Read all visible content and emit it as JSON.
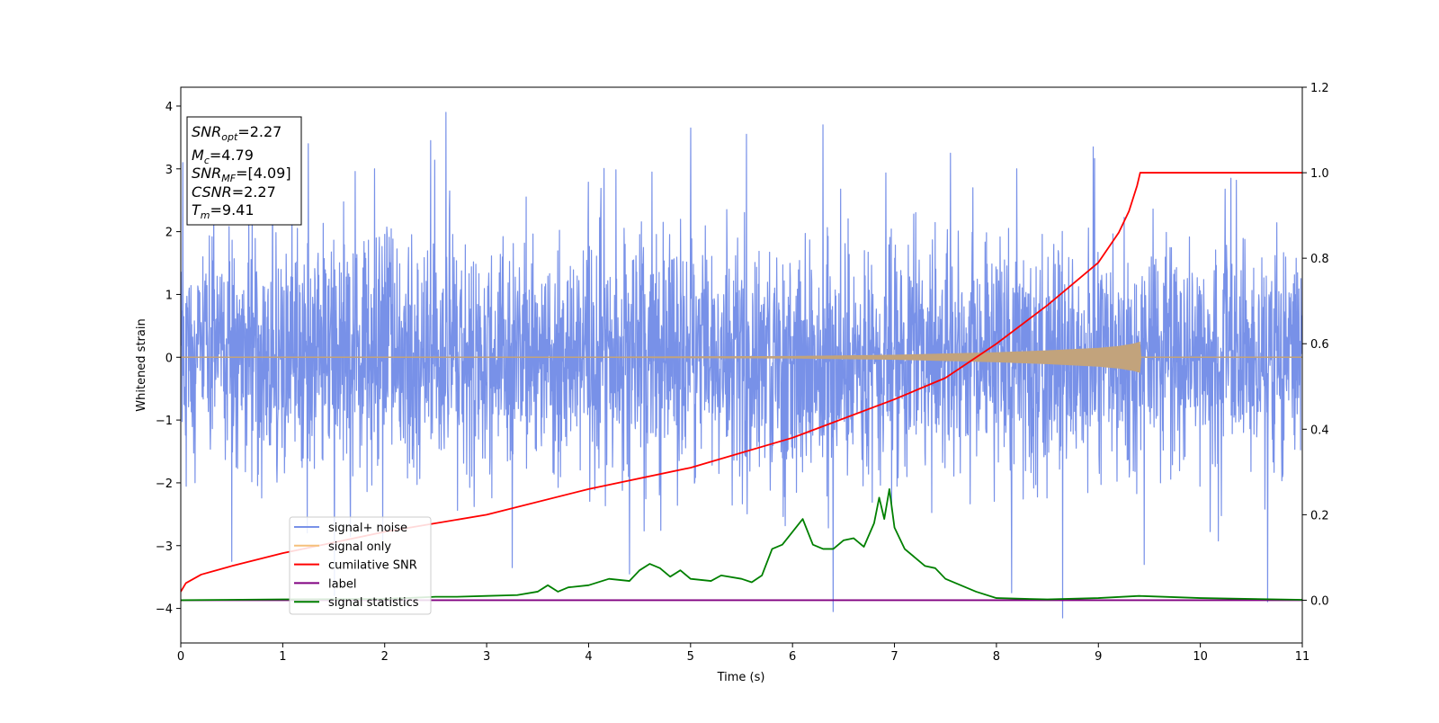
{
  "chart_data": {
    "type": "line",
    "xlabel": "Time (s)",
    "ylabel": "Whitened strain",
    "xlim": [
      0,
      11
    ],
    "ylim": [
      -4.55,
      4.3
    ],
    "y2lim": [
      -0.1,
      1.2
    ],
    "xticks": [
      "0",
      "1",
      "2",
      "3",
      "4",
      "5",
      "6",
      "7",
      "8",
      "9",
      "10",
      "11"
    ],
    "yticks": [
      "−4",
      "−3",
      "−2",
      "−1",
      "0",
      "1",
      "2",
      "3",
      "4"
    ],
    "y2ticks": [
      "0.0",
      "0.2",
      "0.4",
      "0.6",
      "0.8",
      "1.0",
      "1.2"
    ],
    "grid": false,
    "legend_position": "lower-left",
    "annotation_box": {
      "lines": [
        {
          "sym": "SNR",
          "sub": "opt",
          "value": "=2.27"
        },
        {
          "sym": "M",
          "sub": "c",
          "value": "=4.79"
        },
        {
          "sym": "SNR",
          "sub": "MF",
          "value": "=[4.09]"
        },
        {
          "sym": "CSNR",
          "sub": "",
          "value": "=2.27"
        },
        {
          "sym": "T",
          "sub": "m",
          "value": "=9.41"
        }
      ]
    },
    "series": [
      {
        "name": "signal+ noise",
        "color": "#7891e8",
        "axis": "left",
        "kind": "noise",
        "std": 0.95,
        "min_y": -4.15,
        "max_y": 3.9,
        "spikes": [
          [
            0.02,
            3.1
          ],
          [
            0.5,
            -3.25
          ],
          [
            0.9,
            3.3
          ],
          [
            1.25,
            3.4
          ],
          [
            1.9,
            3.0
          ],
          [
            2.45,
            3.45
          ],
          [
            2.6,
            3.9
          ],
          [
            3.25,
            -3.35
          ],
          [
            4.4,
            -3.45
          ],
          [
            5.0,
            3.65
          ],
          [
            5.55,
            3.55
          ],
          [
            6.3,
            3.7
          ],
          [
            6.4,
            -4.05
          ],
          [
            7.55,
            3.25
          ],
          [
            8.15,
            -3.75
          ],
          [
            8.2,
            3.0
          ],
          [
            8.65,
            -4.15
          ],
          [
            8.95,
            3.35
          ],
          [
            9.45,
            -3.3
          ],
          [
            10.3,
            2.85
          ]
        ]
      },
      {
        "name": "signal only",
        "color": "#f5c07a",
        "axis": "left",
        "kind": "chirp",
        "fill_color": "#c2a37c",
        "envelope": [
          [
            0,
            0.004
          ],
          [
            4.0,
            0.01
          ],
          [
            6.0,
            0.02
          ],
          [
            7.0,
            0.04
          ],
          [
            8.0,
            0.08
          ],
          [
            8.5,
            0.11
          ],
          [
            9.0,
            0.15
          ],
          [
            9.2,
            0.18
          ],
          [
            9.35,
            0.22
          ],
          [
            9.41,
            0.25
          ],
          [
            9.42,
            0.0
          ],
          [
            11,
            0.0
          ]
        ]
      },
      {
        "name": "cumilative SNR",
        "color": "#ff0000",
        "axis": "right",
        "points": [
          [
            0,
            0.02
          ],
          [
            0.05,
            0.04
          ],
          [
            0.2,
            0.06
          ],
          [
            0.5,
            0.08
          ],
          [
            1.0,
            0.11
          ],
          [
            2.0,
            0.16
          ],
          [
            3.0,
            0.2
          ],
          [
            4.0,
            0.26
          ],
          [
            5.0,
            0.31
          ],
          [
            6.0,
            0.38
          ],
          [
            7.0,
            0.47
          ],
          [
            7.5,
            0.52
          ],
          [
            8.0,
            0.6
          ],
          [
            8.5,
            0.69
          ],
          [
            9.0,
            0.79
          ],
          [
            9.2,
            0.86
          ],
          [
            9.3,
            0.91
          ],
          [
            9.38,
            0.97
          ],
          [
            9.41,
            1.0
          ],
          [
            11,
            1.0
          ]
        ]
      },
      {
        "name": "label",
        "color": "#800080",
        "axis": "right",
        "points": [
          [
            0,
            0.0
          ],
          [
            11,
            0.0
          ]
        ]
      },
      {
        "name": "signal statistics",
        "color": "#008000",
        "axis": "right",
        "points": [
          [
            0,
            0.0
          ],
          [
            1.0,
            0.002
          ],
          [
            2.0,
            0.003
          ],
          [
            2.5,
            0.008
          ],
          [
            2.7,
            0.008
          ],
          [
            3.0,
            0.01
          ],
          [
            3.3,
            0.012
          ],
          [
            3.5,
            0.02
          ],
          [
            3.6,
            0.035
          ],
          [
            3.7,
            0.02
          ],
          [
            3.8,
            0.03
          ],
          [
            4.0,
            0.035
          ],
          [
            4.2,
            0.05
          ],
          [
            4.4,
            0.045
          ],
          [
            4.5,
            0.07
          ],
          [
            4.6,
            0.085
          ],
          [
            4.7,
            0.075
          ],
          [
            4.8,
            0.055
          ],
          [
            4.9,
            0.07
          ],
          [
            5.0,
            0.05
          ],
          [
            5.2,
            0.045
          ],
          [
            5.3,
            0.058
          ],
          [
            5.5,
            0.05
          ],
          [
            5.6,
            0.042
          ],
          [
            5.7,
            0.058
          ],
          [
            5.8,
            0.12
          ],
          [
            5.9,
            0.13
          ],
          [
            6.0,
            0.16
          ],
          [
            6.1,
            0.19
          ],
          [
            6.2,
            0.13
          ],
          [
            6.3,
            0.12
          ],
          [
            6.4,
            0.12
          ],
          [
            6.5,
            0.14
          ],
          [
            6.6,
            0.145
          ],
          [
            6.7,
            0.125
          ],
          [
            6.8,
            0.18
          ],
          [
            6.85,
            0.24
          ],
          [
            6.9,
            0.19
          ],
          [
            6.95,
            0.26
          ],
          [
            7.0,
            0.17
          ],
          [
            7.1,
            0.12
          ],
          [
            7.2,
            0.1
          ],
          [
            7.3,
            0.08
          ],
          [
            7.4,
            0.075
          ],
          [
            7.5,
            0.05
          ],
          [
            7.6,
            0.04
          ],
          [
            7.8,
            0.02
          ],
          [
            8.0,
            0.005
          ],
          [
            8.5,
            0.002
          ],
          [
            9.0,
            0.005
          ],
          [
            9.4,
            0.01
          ],
          [
            10.0,
            0.005
          ],
          [
            11,
            0.001
          ]
        ]
      }
    ]
  }
}
